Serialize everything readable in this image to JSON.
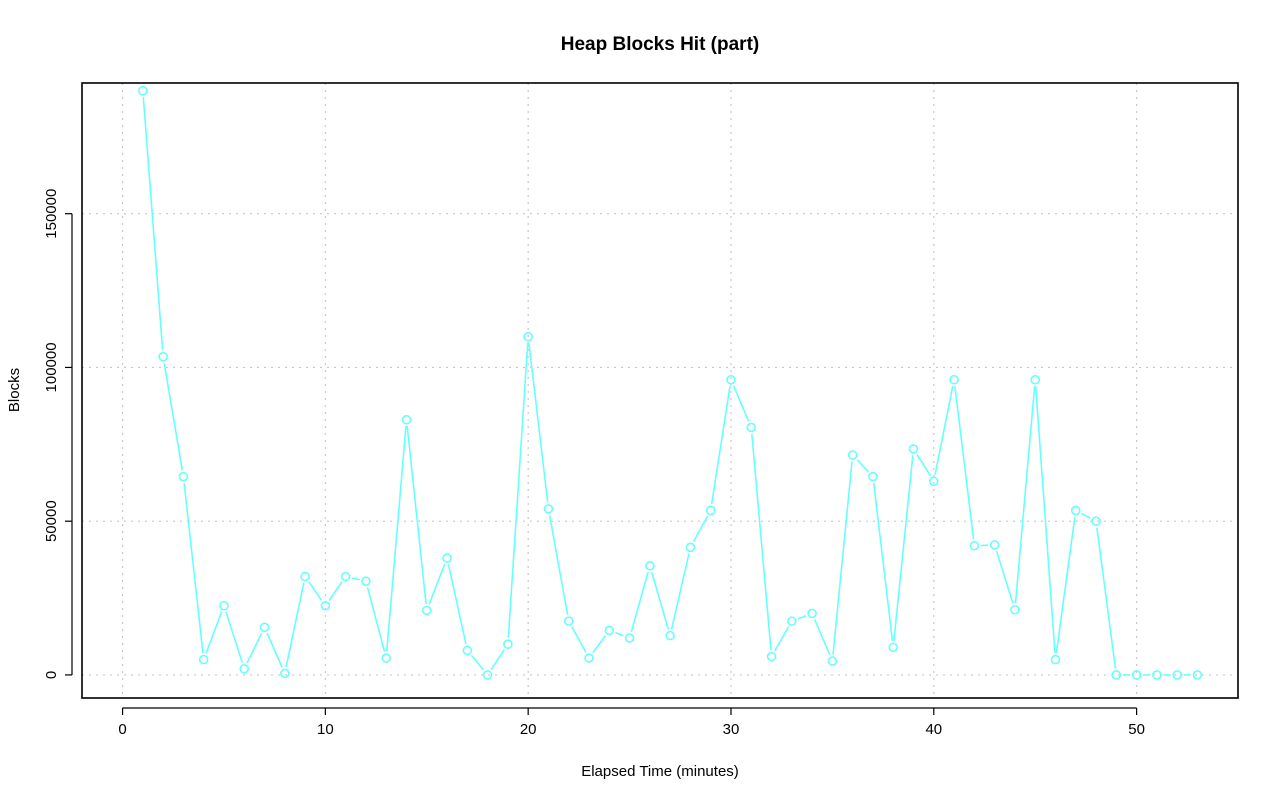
{
  "chart_data": {
    "type": "line",
    "title": "Heap Blocks Hit (part)",
    "xlabel": "Elapsed Time (minutes)",
    "ylabel": "Blocks",
    "xlim": [
      -2,
      55
    ],
    "ylim": [
      -7500,
      192500
    ],
    "x_ticks": [
      0,
      10,
      20,
      30,
      40,
      50
    ],
    "y_ticks": [
      0,
      50000,
      100000,
      150000
    ],
    "grid": true,
    "series_color": "#66ffff",
    "marker": "open-circle",
    "x": [
      1,
      2,
      3,
      4,
      5,
      6,
      7,
      8,
      9,
      10,
      11,
      12,
      13,
      14,
      15,
      16,
      17,
      18,
      19,
      20,
      21,
      22,
      23,
      24,
      25,
      26,
      27,
      28,
      29,
      30,
      31,
      32,
      33,
      34,
      35,
      36,
      37,
      38,
      39,
      40,
      41,
      42,
      43,
      44,
      45,
      46,
      47,
      48,
      49,
      50,
      51,
      52,
      53
    ],
    "y": [
      190000,
      103500,
      64500,
      5000,
      22500,
      2000,
      15500,
      500,
      32000,
      22500,
      32000,
      30500,
      5500,
      83000,
      21000,
      38000,
      8000,
      0,
      10000,
      110000,
      54000,
      17500,
      5500,
      14500,
      12000,
      35500,
      12800,
      41500,
      53500,
      96000,
      80500,
      6000,
      17500,
      20000,
      4500,
      71500,
      64500,
      9000,
      73500,
      63000,
      96000,
      42000,
      42300,
      21200,
      96000,
      5000,
      53500,
      50000,
      0,
      0,
      0,
      0,
      0
    ]
  }
}
